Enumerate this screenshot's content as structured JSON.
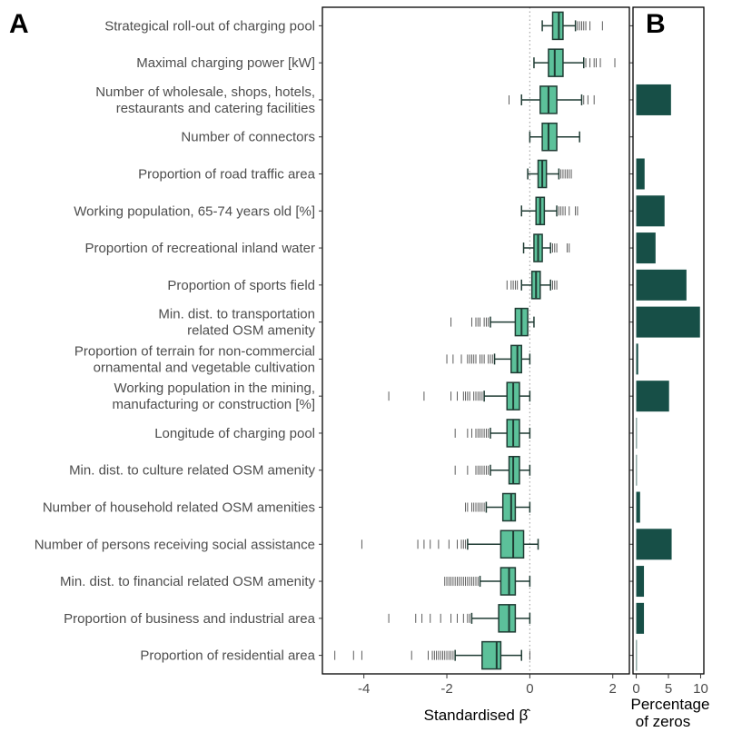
{
  "colors": {
    "box_fill": "#5cc19a",
    "box_stroke": "#1f3b33",
    "bar_fill": "#174f47",
    "frame": "#000000",
    "zero_line": "#a8a8a8"
  },
  "chart_data": [
    {
      "panel": "A",
      "type": "boxplot",
      "xlabel": "Standardised β̂",
      "xlim": [
        -5.0,
        2.4
      ],
      "xticks": [
        -4,
        -2,
        0,
        2
      ],
      "xtick_labels": [
        "-4",
        "-2",
        "0",
        "2"
      ],
      "reference_line_x": 0,
      "categories": [
        [
          "Strategical roll-out of charging pool"
        ],
        [
          "Maximal charging power [kW]"
        ],
        [
          "Number of wholesale, shops, hotels,",
          "restaurants and catering facilities"
        ],
        [
          "Number of connectors"
        ],
        [
          "Proportion of road traffic area"
        ],
        [
          "Working population, 65-74 years old [%]"
        ],
        [
          "Proportion of recreational inland water"
        ],
        [
          "Proportion of sports field"
        ],
        [
          "Min. dist. to transportation",
          "related OSM amenity"
        ],
        [
          "Proportion of terrain for non-commercial",
          "ornamental and vegetable cultivation"
        ],
        [
          "Working population in the mining,",
          "manufacturing or construction [%]"
        ],
        [
          "Longitude of charging pool"
        ],
        [
          "Min. dist. to culture related OSM amenity"
        ],
        [
          "Number of household related OSM amenities"
        ],
        [
          "Number of persons receiving social assistance"
        ],
        [
          "Min. dist. to financial related OSM amenity"
        ],
        [
          "Proportion of business and industrial area"
        ],
        [
          "Proportion of residential area"
        ]
      ],
      "boxes": [
        {
          "min": 0.3,
          "q1": 0.55,
          "median": 0.7,
          "q3": 0.8,
          "max": 1.1,
          "outliers": [
            1.15,
            1.2,
            1.25,
            1.3,
            1.35,
            1.45,
            1.75
          ]
        },
        {
          "min": 0.1,
          "q1": 0.45,
          "median": 0.6,
          "q3": 0.8,
          "max": 1.3,
          "outliers": [
            1.35,
            1.45,
            1.55,
            1.6,
            1.7,
            2.05
          ]
        },
        {
          "min": -0.2,
          "q1": 0.25,
          "median": 0.45,
          "q3": 0.65,
          "max": 1.25,
          "outliers": [
            -0.5,
            1.3,
            1.4,
            1.55
          ]
        },
        {
          "min": 0.0,
          "q1": 0.3,
          "median": 0.45,
          "q3": 0.65,
          "max": 1.2,
          "outliers": []
        },
        {
          "min": -0.05,
          "q1": 0.2,
          "median": 0.3,
          "q3": 0.4,
          "max": 0.7,
          "outliers": [
            0.75,
            0.8,
            0.85,
            0.9,
            0.95,
            1.0
          ]
        },
        {
          "min": -0.2,
          "q1": 0.15,
          "median": 0.25,
          "q3": 0.35,
          "max": 0.65,
          "outliers": [
            0.7,
            0.75,
            0.8,
            0.85,
            0.95,
            1.1,
            1.15
          ]
        },
        {
          "min": -0.15,
          "q1": 0.1,
          "median": 0.2,
          "q3": 0.3,
          "max": 0.5,
          "outliers": [
            0.55,
            0.6,
            0.65,
            0.9,
            0.95
          ]
        },
        {
          "min": -0.2,
          "q1": 0.05,
          "median": 0.15,
          "q3": 0.25,
          "max": 0.5,
          "outliers": [
            -0.55,
            -0.45,
            -0.4,
            -0.35,
            -0.3,
            0.55,
            0.6,
            0.65
          ]
        },
        {
          "min": -0.95,
          "q1": -0.35,
          "median": -0.2,
          "q3": -0.05,
          "max": 0.1,
          "outliers": [
            -1.9,
            -1.4,
            -1.3,
            -1.25,
            -1.2,
            -1.1,
            -1.05,
            -1.0
          ]
        },
        {
          "min": -0.85,
          "q1": -0.45,
          "median": -0.3,
          "q3": -0.2,
          "max": 0.0,
          "outliers": [
            -2.0,
            -1.85,
            -1.65,
            -1.5,
            -1.45,
            -1.4,
            -1.35,
            -1.3,
            -1.2,
            -1.15,
            -1.1,
            -1.0,
            -0.95,
            -0.9
          ]
        },
        {
          "min": -1.1,
          "q1": -0.55,
          "median": -0.4,
          "q3": -0.25,
          "max": 0.0,
          "outliers": [
            -3.4,
            -2.55,
            -1.9,
            -1.75,
            -1.6,
            -1.55,
            -1.5,
            -1.45,
            -1.35,
            -1.3,
            -1.25,
            -1.2,
            -1.15
          ]
        },
        {
          "min": -0.95,
          "q1": -0.55,
          "median": -0.4,
          "q3": -0.25,
          "max": 0.0,
          "outliers": [
            -1.8,
            -1.5,
            -1.4,
            -1.3,
            -1.25,
            -1.2,
            -1.15,
            -1.1,
            -1.05,
            -1.0
          ]
        },
        {
          "min": -0.95,
          "q1": -0.5,
          "median": -0.4,
          "q3": -0.25,
          "max": 0.0,
          "outliers": [
            -1.8,
            -1.5,
            -1.3,
            -1.25,
            -1.2,
            -1.15,
            -1.1,
            -1.05,
            -1.0
          ]
        },
        {
          "min": -1.05,
          "q1": -0.65,
          "median": -0.45,
          "q3": -0.35,
          "max": 0.0,
          "outliers": [
            -1.55,
            -1.5,
            -1.4,
            -1.35,
            -1.3,
            -1.25,
            -1.2,
            -1.15,
            -1.1
          ]
        },
        {
          "min": -1.5,
          "q1": -0.7,
          "median": -0.4,
          "q3": -0.15,
          "max": 0.2,
          "outliers": [
            -4.05,
            -2.7,
            -2.55,
            -2.4,
            -2.2,
            -1.95,
            -1.75,
            -1.65,
            -1.6,
            -1.55
          ]
        },
        {
          "min": -1.2,
          "q1": -0.7,
          "median": -0.5,
          "q3": -0.35,
          "max": 0.0,
          "outliers": [
            -2.05,
            -2.0,
            -1.95,
            -1.9,
            -1.85,
            -1.8,
            -1.75,
            -1.7,
            -1.65,
            -1.6,
            -1.55,
            -1.5,
            -1.45,
            -1.4,
            -1.35,
            -1.3,
            -1.25
          ]
        },
        {
          "min": -1.4,
          "q1": -0.75,
          "median": -0.5,
          "q3": -0.35,
          "max": 0.0,
          "outliers": [
            -3.4,
            -2.75,
            -2.6,
            -2.4,
            -2.15,
            -1.9,
            -1.75,
            -1.6,
            -1.5,
            -1.45
          ]
        },
        {
          "min": -1.8,
          "q1": -1.15,
          "median": -0.8,
          "q3": -0.7,
          "max": -0.2,
          "outliers": [
            -4.7,
            -4.25,
            -4.05,
            -2.85,
            -2.45,
            -2.35,
            -2.3,
            -2.25,
            -2.2,
            -2.15,
            -2.1,
            -2.05,
            -2.0,
            -1.95,
            -1.9,
            -1.85,
            0.0
          ]
        }
      ]
    },
    {
      "panel": "B",
      "type": "bar",
      "orientation": "horizontal",
      "xlabel_lines": [
        "Percentage",
        "of zeros"
      ],
      "xlim": [
        -0.5,
        10.5
      ],
      "xticks": [
        0,
        5,
        10
      ],
      "xtick_labels": [
        "0",
        "5",
        "10"
      ],
      "values": [
        0,
        0,
        5.4,
        0,
        1.3,
        4.4,
        3.0,
        7.8,
        9.9,
        0.3,
        5.1,
        0.1,
        0.1,
        0.6,
        5.5,
        1.2,
        1.2,
        0.1
      ]
    }
  ]
}
